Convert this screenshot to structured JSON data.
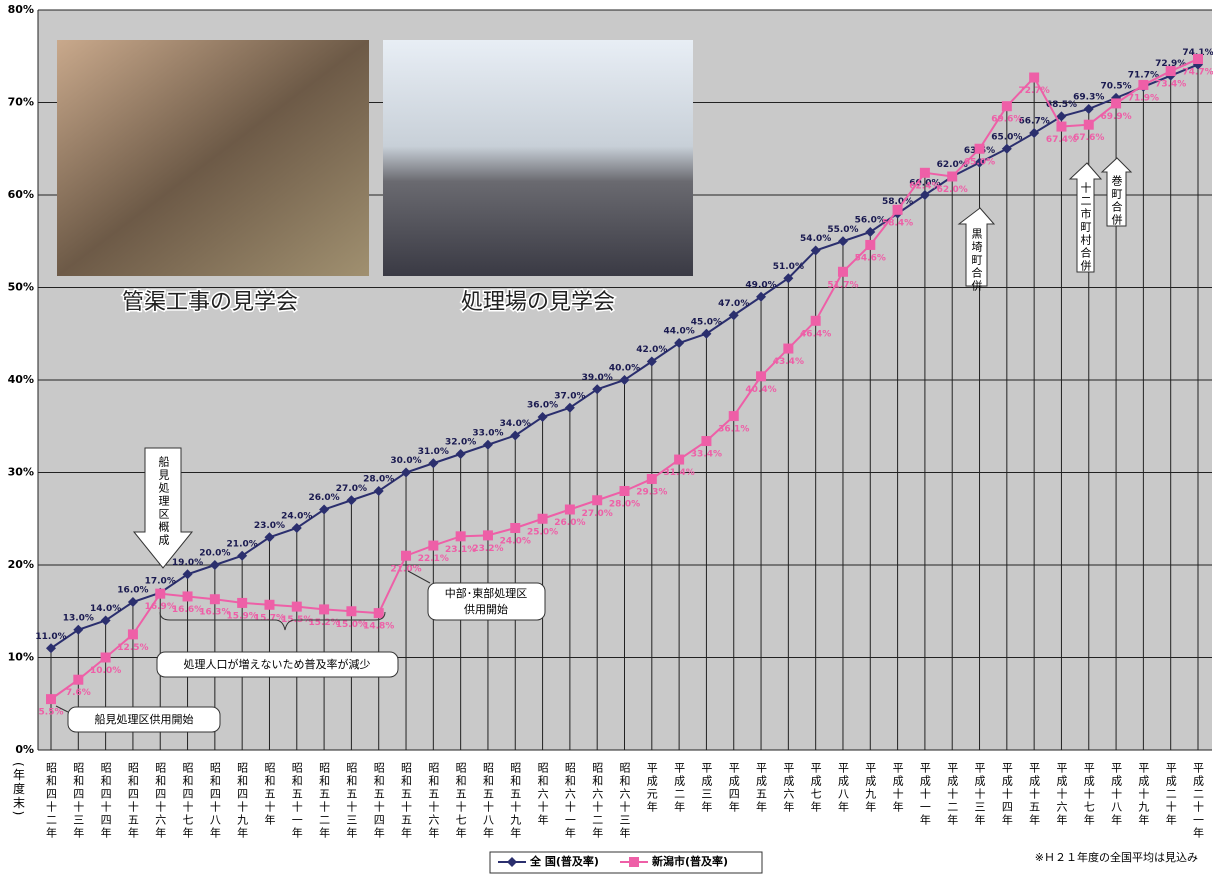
{
  "chart_data": {
    "type": "line",
    "y_axis_label": "(年度末)",
    "categories": [
      "昭和四十二年",
      "昭和四十三年",
      "昭和四十四年",
      "昭和四十五年",
      "昭和四十六年",
      "昭和四十七年",
      "昭和四十八年",
      "昭和四十九年",
      "昭和五十年",
      "昭和五十一年",
      "昭和五十二年",
      "昭和五十三年",
      "昭和五十四年",
      "昭和五十五年",
      "昭和五十六年",
      "昭和五十七年",
      "昭和五十八年",
      "昭和五十九年",
      "昭和六十年",
      "昭和六十一年",
      "昭和六十二年",
      "昭和六十三年",
      "平成元年",
      "平成二年",
      "平成三年",
      "平成四年",
      "平成五年",
      "平成六年",
      "平成七年",
      "平成八年",
      "平成九年",
      "平成十年",
      "平成十一年",
      "平成十二年",
      "平成十三年",
      "平成十四年",
      "平成十五年",
      "平成十六年",
      "平成十七年",
      "平成十八年",
      "平成十九年",
      "平成二十年",
      "平成二十一年"
    ],
    "series": [
      {
        "name": "全 国(普及率)",
        "color": "#2b2f6e",
        "values": [
          11,
          13,
          14,
          16,
          17,
          19,
          20,
          21,
          23,
          24,
          26,
          27,
          28,
          30,
          31,
          32,
          33,
          34,
          36,
          37,
          39,
          40,
          42,
          44,
          45,
          47,
          49,
          51,
          54,
          55,
          56,
          58,
          60,
          62,
          63.5,
          65,
          66.7,
          68.5,
          69.3,
          70.5,
          71.7,
          72.9,
          74.1
        ],
        "value_labels": [
          "11.0%",
          "13.0%",
          "14.0%",
          "16.0%",
          "17.0%",
          "19.0%",
          "20.0%",
          "21.0%",
          "23.0%",
          "24.0%",
          "26.0%",
          "27.0%",
          "28.0%",
          "30.0%",
          "31.0%",
          "32.0%",
          "33.0%",
          "34.0%",
          "36.0%",
          "37.0%",
          "39.0%",
          "40.0%",
          "42.0%",
          "44.0%",
          "45.0%",
          "47.0%",
          "49.0%",
          "51.0%",
          "54.0%",
          "55.0%",
          "56.0%",
          "58.0%",
          "60.0%",
          "62.0%",
          "63.5%",
          "65.0%",
          "66.7%",
          "68.5%",
          "69.3%",
          "70.5%",
          "71.7%",
          "72.9%",
          "74.1%"
        ]
      },
      {
        "name": "新潟市(普及率)",
        "color": "#ee5fa7",
        "values": [
          5.5,
          7.6,
          10,
          12.5,
          16.9,
          16.6,
          16.3,
          15.9,
          15.7,
          15.5,
          15.2,
          15,
          14.8,
          21,
          22.1,
          23.1,
          23.2,
          24,
          25,
          26,
          27,
          28,
          29.3,
          31.4,
          33.4,
          36.1,
          40.4,
          43.4,
          46.4,
          51.7,
          54.6,
          58.4,
          62.4,
          62,
          65,
          69.6,
          72.7,
          67.4,
          67.6,
          69.9,
          71.9,
          73.4,
          74.7
        ],
        "value_labels": [
          "5.5%",
          "7.6%",
          "10.0%",
          "12.5%",
          "16.9%",
          "16.6%",
          "16.3%",
          "15.9%",
          "15.7%",
          "15.5%",
          "15.2%",
          "15.0%",
          "14.8%",
          "21.0%",
          "22.1%",
          "23.1%",
          "23.2%",
          "24.0%",
          "25.0%",
          "26.0%",
          "27.0%",
          "28.0%",
          "29.3%",
          "31.4%",
          "33.4%",
          "36.1%",
          "40.4%",
          "43.4%",
          "46.4%",
          "51.7%",
          "54.6%",
          "58.4%",
          "62.4%",
          "62.0%",
          "65.0%",
          "69.6%",
          "72.7%",
          "67.4%",
          "67.6%",
          "69.9%",
          "71.9%",
          "73.4%",
          "74.7%"
        ]
      }
    ],
    "ylim": [
      0,
      80
    ],
    "yticks": [
      {
        "value": 0,
        "label": "0%"
      },
      {
        "value": 10,
        "label": "10%"
      },
      {
        "value": 20,
        "label": "20%"
      },
      {
        "value": 30,
        "label": "30%"
      },
      {
        "value": 40,
        "label": "40%"
      },
      {
        "value": 50,
        "label": "50%"
      },
      {
        "value": 60,
        "label": "60%"
      },
      {
        "value": 70,
        "label": "70%"
      },
      {
        "value": 80,
        "label": "80%"
      }
    ],
    "grid": true,
    "legend": "bottom",
    "annotations": {
      "funami_complete": "船見処理区概成",
      "population_note": "処理人口が増えないため普及率が減少",
      "chubu_tobu_1": "中部･東部処理区",
      "chubu_tobu_2": "供用開始",
      "funami_start": "船見処理区供用開始",
      "kurosaki": "黒埼町合併",
      "twelve": "十二市町村合併",
      "maki": "巻町合併",
      "photo1": "管渠工事の見学会",
      "photo2": "処理場の見学会"
    },
    "footnote": "※Ｈ２１年度の全国平均は見込み"
  }
}
